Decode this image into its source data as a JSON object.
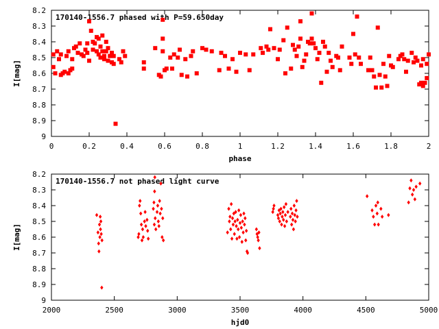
{
  "colors": {
    "points": "#ff0000",
    "axes": "#000000",
    "background": "#ffffff"
  },
  "chart_data": [
    {
      "type": "scatter",
      "title": "170140-1556.7 phased with P=59.650day",
      "xlabel": "phase",
      "ylabel": "I[mag]",
      "xlim": [
        0,
        2
      ],
      "ylim": [
        9,
        8.2
      ],
      "y_inverted": true,
      "x_ticks": [
        0,
        0.2,
        0.4,
        0.6,
        0.8,
        1,
        1.2,
        1.4,
        1.6,
        1.8,
        2
      ],
      "y_ticks": [
        8.2,
        8.3,
        8.4,
        8.5,
        8.6,
        8.7,
        8.8,
        8.9,
        9
      ],
      "x_tick_labels": [
        "0",
        "0.2",
        "0.4",
        "0.6",
        "0.8",
        "1",
        "1.2",
        "1.4",
        "1.6",
        "1.8",
        "2"
      ],
      "y_tick_labels": [
        "8.2",
        "8.3",
        "8.4",
        "8.5",
        "8.6",
        "8.7",
        "8.8",
        "8.9",
        "9"
      ],
      "grid": false,
      "marker": "filled-square",
      "points": [
        [
          0.01,
          8.48
        ],
        [
          0.01,
          8.56
        ],
        [
          0.02,
          8.6
        ],
        [
          0.03,
          8.46
        ],
        [
          0.04,
          8.51
        ],
        [
          0.05,
          8.61
        ],
        [
          0.05,
          8.48
        ],
        [
          0.06,
          8.6
        ],
        [
          0.07,
          8.59
        ],
        [
          0.08,
          8.49
        ],
        [
          0.09,
          8.46
        ],
        [
          0.09,
          8.6
        ],
        [
          0.1,
          8.58
        ],
        [
          0.11,
          8.57
        ],
        [
          0.11,
          8.51
        ],
        [
          0.12,
          8.44
        ],
        [
          0.13,
          8.43
        ],
        [
          0.14,
          8.47
        ],
        [
          0.15,
          8.41
        ],
        [
          0.16,
          8.48
        ],
        [
          0.17,
          8.49
        ],
        [
          0.18,
          8.45
        ],
        [
          0.19,
          8.41
        ],
        [
          0.19,
          8.47
        ],
        [
          0.2,
          8.52
        ],
        [
          0.2,
          8.27
        ],
        [
          0.21,
          8.33
        ],
        [
          0.22,
          8.4
        ],
        [
          0.22,
          8.45
        ],
        [
          0.23,
          8.41
        ],
        [
          0.24,
          8.37
        ],
        [
          0.24,
          8.46
        ],
        [
          0.25,
          8.48
        ],
        [
          0.25,
          8.38
        ],
        [
          0.26,
          8.43
        ],
        [
          0.26,
          8.5
        ],
        [
          0.27,
          8.36
        ],
        [
          0.27,
          8.46
        ],
        [
          0.28,
          8.49
        ],
        [
          0.28,
          8.51
        ],
        [
          0.29,
          8.4
        ],
        [
          0.29,
          8.46
        ],
        [
          0.3,
          8.52
        ],
        [
          0.3,
          8.44
        ],
        [
          0.31,
          8.49
        ],
        [
          0.32,
          8.47
        ],
        [
          0.32,
          8.53
        ],
        [
          0.33,
          8.49
        ],
        [
          0.33,
          8.54
        ],
        [
          0.34,
          8.92
        ],
        [
          0.36,
          8.51
        ],
        [
          0.37,
          8.53
        ],
        [
          0.38,
          8.46
        ],
        [
          0.39,
          8.49
        ],
        [
          0.49,
          8.57
        ],
        [
          0.49,
          8.53
        ],
        [
          0.55,
          8.44
        ],
        [
          0.57,
          8.61
        ],
        [
          0.58,
          8.62
        ],
        [
          0.59,
          8.46
        ],
        [
          0.59,
          8.38
        ],
        [
          0.59,
          8.26
        ],
        [
          0.6,
          8.58
        ],
        [
          0.61,
          8.57
        ],
        [
          0.63,
          8.5
        ],
        [
          0.64,
          8.57
        ],
        [
          0.65,
          8.48
        ],
        [
          0.67,
          8.5
        ],
        [
          0.68,
          8.45
        ],
        [
          0.69,
          8.61
        ],
        [
          0.71,
          8.51
        ],
        [
          0.72,
          8.62
        ],
        [
          0.74,
          8.49
        ],
        [
          0.75,
          8.46
        ],
        [
          0.77,
          8.6
        ],
        [
          0.8,
          8.44
        ],
        [
          0.82,
          8.45
        ],
        [
          0.85,
          8.46
        ],
        [
          0.89,
          8.58
        ],
        [
          0.9,
          8.47
        ],
        [
          0.92,
          8.49
        ],
        [
          0.94,
          8.57
        ],
        [
          0.96,
          8.51
        ],
        [
          0.98,
          8.59
        ],
        [
          1.0,
          8.47
        ],
        [
          1.03,
          8.48
        ],
        [
          1.05,
          8.58
        ],
        [
          1.07,
          8.48
        ],
        [
          1.11,
          8.44
        ],
        [
          1.12,
          8.47
        ],
        [
          1.14,
          8.43
        ],
        [
          1.15,
          8.45
        ],
        [
          1.16,
          8.32
        ],
        [
          1.18,
          8.44
        ],
        [
          1.2,
          8.51
        ],
        [
          1.21,
          8.45
        ],
        [
          1.23,
          8.39
        ],
        [
          1.24,
          8.6
        ],
        [
          1.25,
          8.31
        ],
        [
          1.27,
          8.57
        ],
        [
          1.28,
          8.42
        ],
        [
          1.29,
          8.45
        ],
        [
          1.3,
          8.49
        ],
        [
          1.31,
          8.43
        ],
        [
          1.32,
          8.27
        ],
        [
          1.32,
          8.38
        ],
        [
          1.33,
          8.56
        ],
        [
          1.34,
          8.52
        ],
        [
          1.35,
          8.48
        ],
        [
          1.36,
          8.4
        ],
        [
          1.37,
          8.41
        ],
        [
          1.38,
          8.22
        ],
        [
          1.38,
          8.38
        ],
        [
          1.39,
          8.41
        ],
        [
          1.4,
          8.44
        ],
        [
          1.41,
          8.51
        ],
        [
          1.42,
          8.47
        ],
        [
          1.43,
          8.66
        ],
        [
          1.44,
          8.4
        ],
        [
          1.45,
          8.43
        ],
        [
          1.46,
          8.59
        ],
        [
          1.47,
          8.47
        ],
        [
          1.48,
          8.52
        ],
        [
          1.49,
          8.56
        ],
        [
          1.51,
          8.49
        ],
        [
          1.52,
          8.5
        ],
        [
          1.53,
          8.58
        ],
        [
          1.54,
          8.43
        ],
        [
          1.58,
          8.5
        ],
        [
          1.59,
          8.54
        ],
        [
          1.6,
          8.35
        ],
        [
          1.61,
          8.48
        ],
        [
          1.62,
          8.24
        ],
        [
          1.63,
          8.5
        ],
        [
          1.64,
          8.54
        ],
        [
          1.68,
          8.58
        ],
        [
          1.69,
          8.5
        ],
        [
          1.7,
          8.58
        ],
        [
          1.71,
          8.62
        ],
        [
          1.72,
          8.69
        ],
        [
          1.73,
          8.31
        ],
        [
          1.74,
          8.61
        ],
        [
          1.75,
          8.69
        ],
        [
          1.76,
          8.54
        ],
        [
          1.77,
          8.62
        ],
        [
          1.78,
          8.68
        ],
        [
          1.79,
          8.49
        ],
        [
          1.8,
          8.55
        ],
        [
          1.81,
          8.56
        ],
        [
          1.84,
          8.51
        ],
        [
          1.85,
          8.49
        ],
        [
          1.86,
          8.48
        ],
        [
          1.87,
          8.51
        ],
        [
          1.88,
          8.59
        ],
        [
          1.89,
          8.52
        ],
        [
          1.91,
          8.47
        ],
        [
          1.92,
          8.53
        ],
        [
          1.93,
          8.5
        ],
        [
          1.94,
          8.52
        ],
        [
          1.95,
          8.67
        ],
        [
          1.96,
          8.55
        ],
        [
          1.96,
          8.66
        ],
        [
          1.97,
          8.51
        ],
        [
          1.97,
          8.68
        ],
        [
          1.98,
          8.66
        ],
        [
          1.99,
          8.63
        ],
        [
          1.99,
          8.54
        ],
        [
          2.0,
          8.48
        ]
      ]
    },
    {
      "type": "scatter",
      "title": "170140-1556.7 not phased light curve",
      "xlabel": "hjd0",
      "ylabel": "I[mag]",
      "xlim": [
        2000,
        5000
      ],
      "ylim": [
        9,
        8.2
      ],
      "y_inverted": true,
      "x_ticks": [
        2000,
        2500,
        3000,
        3500,
        4000,
        4500,
        5000
      ],
      "y_ticks": [
        8.2,
        8.3,
        8.4,
        8.5,
        8.6,
        8.7,
        8.8,
        8.9,
        9
      ],
      "x_tick_labels": [
        "2000",
        "2500",
        "3000",
        "3500",
        "4000",
        "4500",
        "5000"
      ],
      "y_tick_labels": [
        "8.2",
        "8.3",
        "8.4",
        "8.5",
        "8.6",
        "8.7",
        "8.8",
        "8.9",
        "9"
      ],
      "grid": false,
      "marker": "filled-diamond",
      "points": [
        [
          2360,
          8.46
        ],
        [
          2370,
          8.57
        ],
        [
          2375,
          8.64
        ],
        [
          2378,
          8.69
        ],
        [
          2382,
          8.52
        ],
        [
          2385,
          8.6
        ],
        [
          2388,
          8.47
        ],
        [
          2390,
          8.55
        ],
        [
          2393,
          8.5
        ],
        [
          2396,
          8.58
        ],
        [
          2400,
          8.92
        ],
        [
          2402,
          8.62
        ],
        [
          2690,
          8.6
        ],
        [
          2695,
          8.58
        ],
        [
          2700,
          8.4
        ],
        [
          2705,
          8.37
        ],
        [
          2710,
          8.45
        ],
        [
          2715,
          8.52
        ],
        [
          2720,
          8.62
        ],
        [
          2725,
          8.55
        ],
        [
          2730,
          8.6
        ],
        [
          2740,
          8.5
        ],
        [
          2745,
          8.44
        ],
        [
          2750,
          8.53
        ],
        [
          2760,
          8.49
        ],
        [
          2765,
          8.56
        ],
        [
          2770,
          8.61
        ],
        [
          2810,
          8.42
        ],
        [
          2815,
          8.38
        ],
        [
          2818,
          8.52
        ],
        [
          2820,
          8.31
        ],
        [
          2822,
          8.22
        ],
        [
          2825,
          8.48
        ],
        [
          2830,
          8.55
        ],
        [
          2840,
          8.44
        ],
        [
          2845,
          8.4
        ],
        [
          2850,
          8.5
        ],
        [
          2855,
          8.53
        ],
        [
          2860,
          8.37
        ],
        [
          2865,
          8.45
        ],
        [
          2870,
          8.26
        ],
        [
          2875,
          8.42
        ],
        [
          2880,
          8.6
        ],
        [
          2885,
          8.48
        ],
        [
          2890,
          8.62
        ],
        [
          3400,
          8.57
        ],
        [
          3410,
          8.42
        ],
        [
          3415,
          8.5
        ],
        [
          3420,
          8.47
        ],
        [
          3425,
          8.55
        ],
        [
          3430,
          8.39
        ],
        [
          3435,
          8.61
        ],
        [
          3440,
          8.48
        ],
        [
          3445,
          8.52
        ],
        [
          3450,
          8.45
        ],
        [
          3455,
          8.58
        ],
        [
          3460,
          8.5
        ],
        [
          3465,
          8.44
        ],
        [
          3470,
          8.53
        ],
        [
          3475,
          8.61
        ],
        [
          3480,
          8.49
        ],
        [
          3485,
          8.55
        ],
        [
          3490,
          8.43
        ],
        [
          3495,
          8.6
        ],
        [
          3500,
          8.51
        ],
        [
          3505,
          8.46
        ],
        [
          3510,
          8.54
        ],
        [
          3515,
          8.63
        ],
        [
          3520,
          8.5
        ],
        [
          3525,
          8.57
        ],
        [
          3530,
          8.45
        ],
        [
          3535,
          8.52
        ],
        [
          3540,
          8.48
        ],
        [
          3545,
          8.62
        ],
        [
          3550,
          8.56
        ],
        [
          3555,
          8.69
        ],
        [
          3560,
          8.7
        ],
        [
          3630,
          8.55
        ],
        [
          3635,
          8.58
        ],
        [
          3640,
          8.6
        ],
        [
          3645,
          8.62
        ],
        [
          3650,
          8.57
        ],
        [
          3655,
          8.67
        ],
        [
          3760,
          8.44
        ],
        [
          3765,
          8.42
        ],
        [
          3770,
          8.4
        ],
        [
          3800,
          8.46
        ],
        [
          3805,
          8.48
        ],
        [
          3810,
          8.43
        ],
        [
          3815,
          8.5
        ],
        [
          3820,
          8.45
        ],
        [
          3825,
          8.42
        ],
        [
          3830,
          8.52
        ],
        [
          3835,
          8.47
        ],
        [
          3840,
          8.44
        ],
        [
          3845,
          8.49
        ],
        [
          3850,
          8.41
        ],
        [
          3855,
          8.53
        ],
        [
          3860,
          8.46
        ],
        [
          3865,
          8.39
        ],
        [
          3870,
          8.5
        ],
        [
          3880,
          8.44
        ],
        [
          3900,
          8.47
        ],
        [
          3905,
          8.42
        ],
        [
          3910,
          8.52
        ],
        [
          3915,
          8.45
        ],
        [
          3920,
          8.49
        ],
        [
          3925,
          8.55
        ],
        [
          3930,
          8.4
        ],
        [
          3935,
          8.46
        ],
        [
          3940,
          8.5
        ],
        [
          3945,
          8.43
        ],
        [
          3950,
          8.37
        ],
        [
          3955,
          8.47
        ],
        [
          4510,
          8.34
        ],
        [
          4550,
          8.43
        ],
        [
          4560,
          8.47
        ],
        [
          4570,
          8.52
        ],
        [
          4580,
          8.4
        ],
        [
          4590,
          8.45
        ],
        [
          4595,
          8.38
        ],
        [
          4600,
          8.52
        ],
        [
          4620,
          8.42
        ],
        [
          4630,
          8.47
        ],
        [
          4680,
          8.46
        ],
        [
          4840,
          8.38
        ],
        [
          4850,
          8.29
        ],
        [
          4860,
          8.24
        ],
        [
          4870,
          8.33
        ],
        [
          4880,
          8.3
        ],
        [
          4890,
          8.36
        ],
        [
          4900,
          8.28
        ],
        [
          4930,
          8.26
        ]
      ]
    }
  ]
}
